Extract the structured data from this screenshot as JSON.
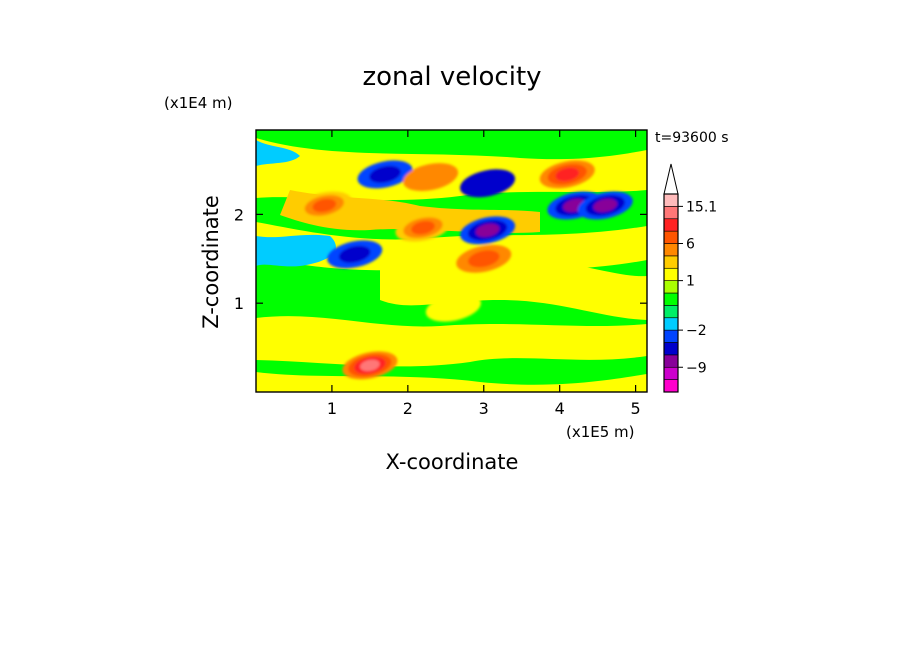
{
  "chart_data": {
    "type": "heatmap",
    "title": "zonal velocity",
    "xlabel": "X-coordinate",
    "ylabel": "Z-coordinate",
    "x_unit": "(x1E5 m)",
    "y_unit": "(x1E4 m)",
    "time_label": "t=93600 s",
    "xlim": [
      0,
      5.15
    ],
    "ylim": [
      0,
      2.95
    ],
    "x_ticks": [
      1,
      2,
      3,
      4,
      5
    ],
    "y_ticks": [
      1,
      2
    ],
    "x_tick_labels": [
      "1",
      "2",
      "3",
      "4",
      "5"
    ],
    "y_tick_labels": [
      "1",
      "2"
    ],
    "colorbar": {
      "levels": [
        -15,
        -12,
        -9,
        -6,
        -3,
        -2,
        -1,
        0,
        0.5,
        1,
        2,
        3,
        6,
        9,
        12,
        15.1
      ],
      "colors": [
        "#ff00cc",
        "#cc00cc",
        "#880099",
        "#0000cc",
        "#0044ff",
        "#00ccff",
        "#00ee66",
        "#00ff00",
        "#aaff00",
        "#ffff00",
        "#ffcc00",
        "#ff8800",
        "#ff5500",
        "#ff2222",
        "#ff7777",
        "#ffbbbb"
      ],
      "labeled_levels": [
        15.1,
        6,
        1,
        -2,
        -9
      ],
      "labels": [
        "15.1",
        "6",
        "1",
        "−2",
        "−9"
      ],
      "extend": "max"
    },
    "features": [
      {
        "x": 1.7,
        "z": 2.45,
        "value": -6
      },
      {
        "x": 2.3,
        "z": 2.42,
        "value": 4
      },
      {
        "x": 3.05,
        "z": 2.35,
        "value": -4
      },
      {
        "x": 0.9,
        "z": 2.1,
        "value": 8
      },
      {
        "x": 2.2,
        "z": 1.85,
        "value": 8
      },
      {
        "x": 3.05,
        "z": 1.82,
        "value": -8
      },
      {
        "x": 1.3,
        "z": 1.55,
        "value": -6
      },
      {
        "x": 3.0,
        "z": 1.5,
        "value": 7
      },
      {
        "x": 4.2,
        "z": 2.1,
        "value": -8
      },
      {
        "x": 4.6,
        "z": 2.1,
        "value": -8
      },
      {
        "x": 4.1,
        "z": 2.45,
        "value": 9
      },
      {
        "x": 2.6,
        "z": 0.95,
        "value": 1
      },
      {
        "x": 1.5,
        "z": 0.3,
        "value": 15
      }
    ]
  }
}
